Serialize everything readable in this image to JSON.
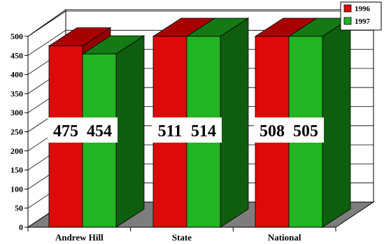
{
  "chart_data": {
    "type": "bar",
    "style": "3d-clustered",
    "categories": [
      "Andrew Hill",
      "State",
      "National"
    ],
    "series": [
      {
        "name": "1996",
        "values": [
          475,
          511,
          508
        ],
        "color": "#dd0a0a",
        "side_color": "#940000",
        "top_color": "#a80000"
      },
      {
        "name": "1997",
        "values": [
          454,
          514,
          505
        ],
        "color": "#22b422",
        "side_color": "#0f5e0f",
        "top_color": "#157a15"
      }
    ],
    "ylim": [
      0,
      500
    ],
    "yticks": [
      "0",
      "50",
      "100",
      "150",
      "200",
      "250",
      "300",
      "350",
      "400",
      "450",
      "500"
    ],
    "grid": true,
    "legend_position": "top-right",
    "floor_color": "#7d7d7d",
    "title": "",
    "xlabel": "",
    "ylabel": ""
  }
}
